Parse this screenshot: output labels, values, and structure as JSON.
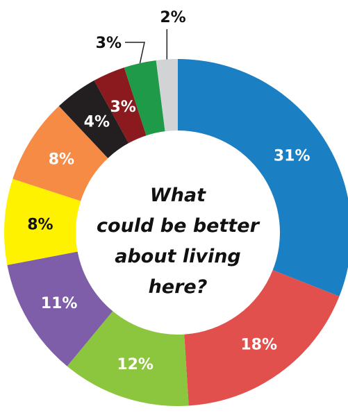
{
  "chart_data": {
    "type": "pie",
    "subtype": "donut",
    "title": "What could be better about living here?",
    "center_lines": [
      "What",
      "could be better",
      "about living",
      "here?"
    ],
    "slices": [
      {
        "label": "31%",
        "value": 31,
        "color": "#1b7fc4",
        "label_color": "#ffffff"
      },
      {
        "label": "18%",
        "value": 18,
        "color": "#e2504e",
        "label_color": "#ffffff"
      },
      {
        "label": "12%",
        "value": 12,
        "color": "#8cc63e",
        "label_color": "#ffffff"
      },
      {
        "label": "11%",
        "value": 11,
        "color": "#7e5ea8",
        "label_color": "#ffffff"
      },
      {
        "label": "8%",
        "value": 8,
        "color": "#fff200",
        "label_color": "#111111"
      },
      {
        "label": "8%",
        "value": 8,
        "color": "#f68b46",
        "label_color": "#ffffff"
      },
      {
        "label": "4%",
        "value": 4,
        "color": "#231f20",
        "label_color": "#ffffff"
      },
      {
        "label": "3%",
        "value": 3,
        "color": "#8b1a1e",
        "label_color": "#ffffff"
      },
      {
        "label": "3%",
        "value": 3,
        "color": "#1f9a48",
        "label_color": "#111111"
      },
      {
        "label": "2%",
        "value": 2,
        "color": "#d1d3d4",
        "label_color": "#111111"
      }
    ],
    "legend": "none"
  }
}
